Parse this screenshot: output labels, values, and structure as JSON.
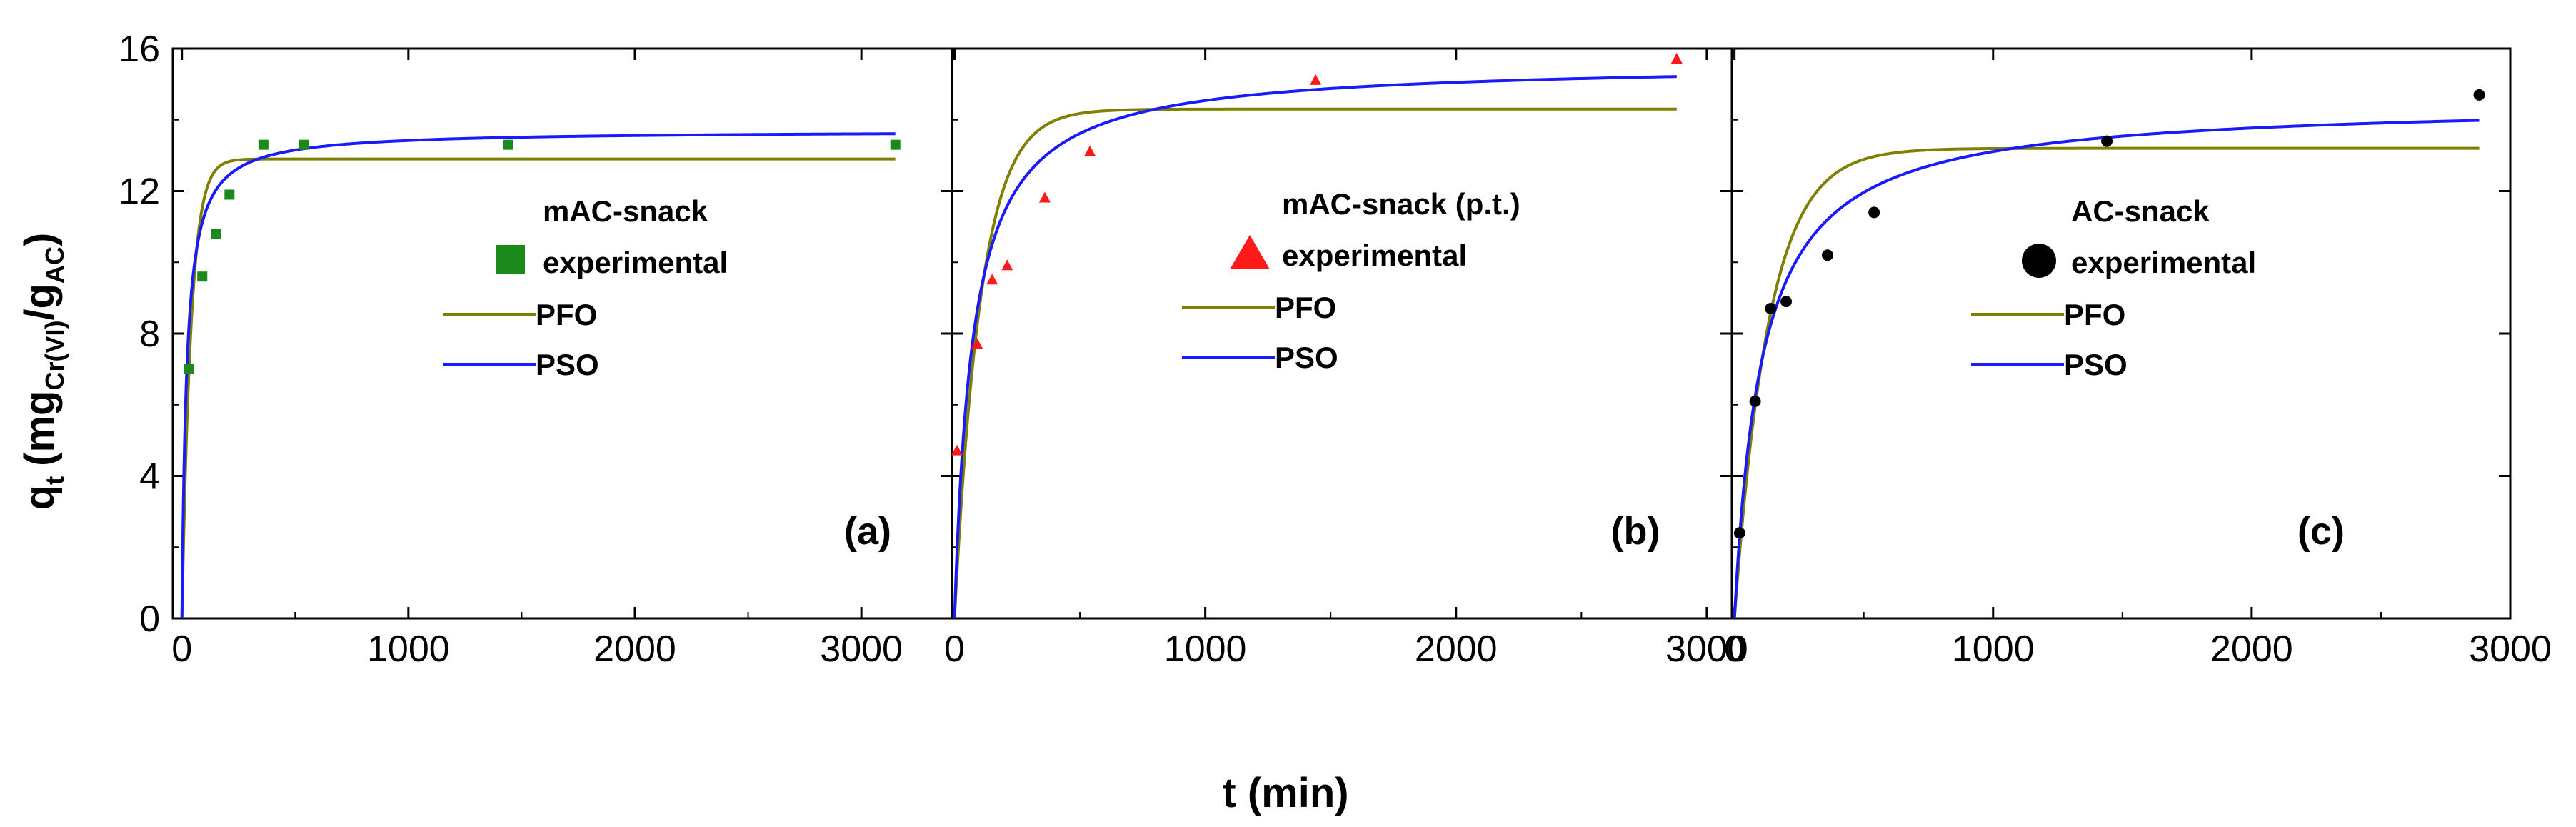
{
  "chart_data": {
    "type": "scatter",
    "xlabel": "t (min)",
    "ylabel": {
      "main": "q",
      "sub_t": "t",
      "mg": "(mg",
      "cr": "Cr(VI)",
      "slash_g": "/g",
      "ac": "AC",
      "close": ")"
    },
    "ylim": [
      0,
      16
    ],
    "y_ticks": [
      "0",
      "4",
      "8",
      "12",
      "16"
    ],
    "x_ticks": [
      "0",
      "1000",
      "2000",
      "3000"
    ],
    "colors": {
      "pfo": "#808000",
      "pso": "#1a1aff",
      "axis": "#000000"
    },
    "panels": [
      {
        "label": "(a)",
        "xlim": [
          -40,
          3400
        ],
        "experimental": {
          "name": "experimental",
          "title": "mAC-snack",
          "marker": "square",
          "color": "#1a8a1a",
          "t": [
            30,
            90,
            150,
            210,
            360,
            540,
            1440,
            3150
          ],
          "q": [
            7.0,
            9.6,
            10.8,
            11.9,
            13.3,
            13.3,
            13.3,
            13.3
          ]
        },
        "pfo": {
          "name": "PFO",
          "qe": 12.9,
          "k1": 0.025,
          "tmax": 3150
        },
        "pso": {
          "name": "PSO",
          "qe": 13.7,
          "k2": 0.0035,
          "tmax": 3150
        }
      },
      {
        "label": "(b)",
        "xlim": [
          -10,
          3100
        ],
        "experimental": {
          "name": "experimental",
          "title": "mAC-snack (p.t.)",
          "marker": "triangle",
          "color": "#ff1a1a",
          "t": [
            10,
            90,
            150,
            210,
            360,
            540,
            1440,
            2880
          ],
          "q": [
            4.7,
            7.7,
            9.5,
            9.9,
            11.8,
            13.1,
            15.1,
            15.7
          ]
        },
        "pfo": {
          "name": "PFO",
          "qe": 14.3,
          "k1": 0.0095,
          "tmax": 2880
        },
        "pso": {
          "name": "PSO",
          "qe": 15.6,
          "k2": 0.00088,
          "tmax": 2880
        }
      },
      {
        "label": "(c)",
        "xlim": [
          -10,
          3000
        ],
        "experimental": {
          "name": "experimental",
          "title": "AC-snack",
          "marker": "circle",
          "color": "#000000",
          "t": [
            20,
            80,
            140,
            200,
            360,
            540,
            1440,
            2880
          ],
          "q": [
            2.4,
            6.1,
            8.7,
            8.9,
            10.2,
            11.4,
            13.4,
            14.7
          ]
        },
        "pfo": {
          "name": "PFO",
          "qe": 13.2,
          "k1": 0.0075,
          "tmax": 2880
        },
        "pso": {
          "name": "PSO",
          "qe": 14.5,
          "k2": 0.00065,
          "tmax": 2880
        }
      }
    ]
  }
}
